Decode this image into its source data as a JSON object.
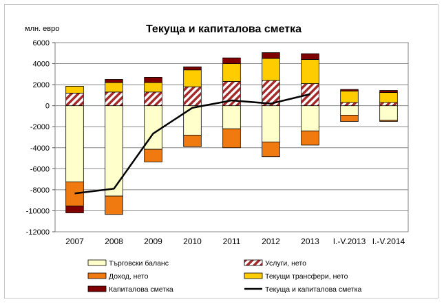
{
  "chart_data": {
    "type": "bar",
    "stacked": true,
    "title": "Текуща и капиталова сметка",
    "ylabel": "млн. евро",
    "xlabel": "",
    "ylim": [
      -12000,
      6000
    ],
    "yticks": [
      6000,
      4000,
      2000,
      0,
      -2000,
      -4000,
      -6000,
      -8000,
      -10000,
      -12000
    ],
    "grid": true,
    "legend_position": "bottom",
    "categories": [
      "2007",
      "2008",
      "2009",
      "2010",
      "2011",
      "2012",
      "2013",
      "I.-V.2013",
      "I.-V.2014"
    ],
    "series": [
      {
        "name": "Търговски баланс",
        "type": "bar",
        "color": "#ffffcc",
        "hatch": false,
        "values": [
          -7250,
          -8600,
          -4150,
          -2800,
          -2200,
          -3450,
          -2400,
          -900,
          -1400
        ]
      },
      {
        "name": "Услуги, нето",
        "type": "bar",
        "color": "#a52a2a",
        "hatch": true,
        "values": [
          1200,
          1300,
          1300,
          1800,
          2300,
          2400,
          2100,
          300,
          300
        ]
      },
      {
        "name": "Доход, нето",
        "type": "bar",
        "color": "#f07a10",
        "hatch": false,
        "values": [
          -2300,
          -1750,
          -1200,
          -1100,
          -1800,
          -1400,
          -1350,
          -600,
          -100
        ]
      },
      {
        "name": "Текущи трансфери, нето",
        "type": "bar",
        "color": "#ffcc00",
        "hatch": false,
        "values": [
          650,
          900,
          900,
          1600,
          1700,
          2100,
          2300,
          1100,
          950
        ]
      },
      {
        "name": "Капиталова сметка",
        "type": "bar",
        "color": "#7f0000",
        "hatch": false,
        "values": [
          -650,
          300,
          500,
          300,
          550,
          550,
          550,
          150,
          200
        ]
      },
      {
        "name": "Текуща и капиталова сметка",
        "type": "line",
        "color": "#000000",
        "values": [
          -8350,
          -7900,
          -2650,
          -200,
          500,
          200,
          1100,
          null,
          null
        ]
      }
    ]
  }
}
